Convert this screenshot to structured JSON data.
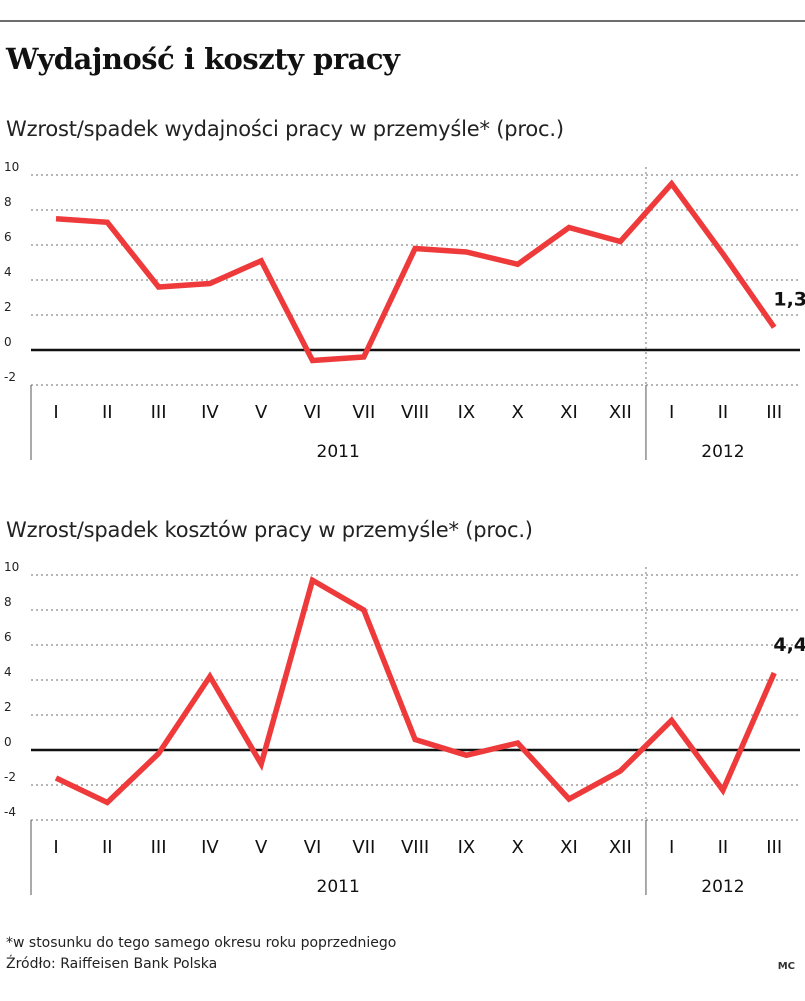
{
  "title": "Wydajność i koszty pracy",
  "colors": {
    "line": "#ee3a3a",
    "axis": "#111111",
    "grid": "#8a8a8a"
  },
  "chart_data": [
    {
      "type": "line",
      "title": "Wzrost/spadek wydajności pracy w przemyśle* (proc.)",
      "categories": [
        "I",
        "II",
        "III",
        "IV",
        "V",
        "VI",
        "VII",
        "VIII",
        "IX",
        "X",
        "XI",
        "XII",
        "I",
        "II",
        "III"
      ],
      "groups": [
        {
          "label": "2011",
          "count": 12
        },
        {
          "label": "2012",
          "count": 3
        }
      ],
      "yticks": [
        -2,
        0,
        2,
        4,
        6,
        8,
        10
      ],
      "ytick_labels": [
        "-2",
        "0",
        "2",
        "4",
        "6",
        "8",
        "10"
      ],
      "ylim": [
        -2,
        10
      ],
      "grid": true,
      "series": [
        {
          "values": [
            7.5,
            7.3,
            3.6,
            3.8,
            5.1,
            -0.6,
            -0.4,
            5.8,
            5.6,
            4.9,
            7.0,
            6.2,
            9.5,
            5.5,
            1.3
          ]
        }
      ],
      "annotation": {
        "text": "1,3",
        "index": 14
      }
    },
    {
      "type": "line",
      "title": "Wzrost/spadek kosztów pracy w przemyśle* (proc.)",
      "categories": [
        "I",
        "II",
        "III",
        "IV",
        "V",
        "VI",
        "VII",
        "VIII",
        "IX",
        "X",
        "XI",
        "XII",
        "I",
        "II",
        "III"
      ],
      "groups": [
        {
          "label": "2011",
          "count": 12
        },
        {
          "label": "2012",
          "count": 3
        }
      ],
      "yticks": [
        -4,
        -2,
        0,
        2,
        4,
        6,
        8,
        10
      ],
      "ytick_labels": [
        "-4",
        "-2",
        "0",
        "2",
        "4",
        "6",
        "8",
        "10"
      ],
      "ylim": [
        -4,
        10
      ],
      "grid": true,
      "series": [
        {
          "values": [
            -1.6,
            -3.0,
            -0.2,
            4.2,
            -0.8,
            9.7,
            8.0,
            0.6,
            -0.3,
            0.4,
            -2.8,
            -1.2,
            1.7,
            -2.3,
            4.4
          ]
        }
      ],
      "annotation": {
        "text": "4,4",
        "index": 14
      }
    }
  ],
  "footnote": "*w stosunku do tego samego okresu roku poprzedniego",
  "source": "Źródło: Raiffeisen Bank Polska",
  "credit": "MC"
}
